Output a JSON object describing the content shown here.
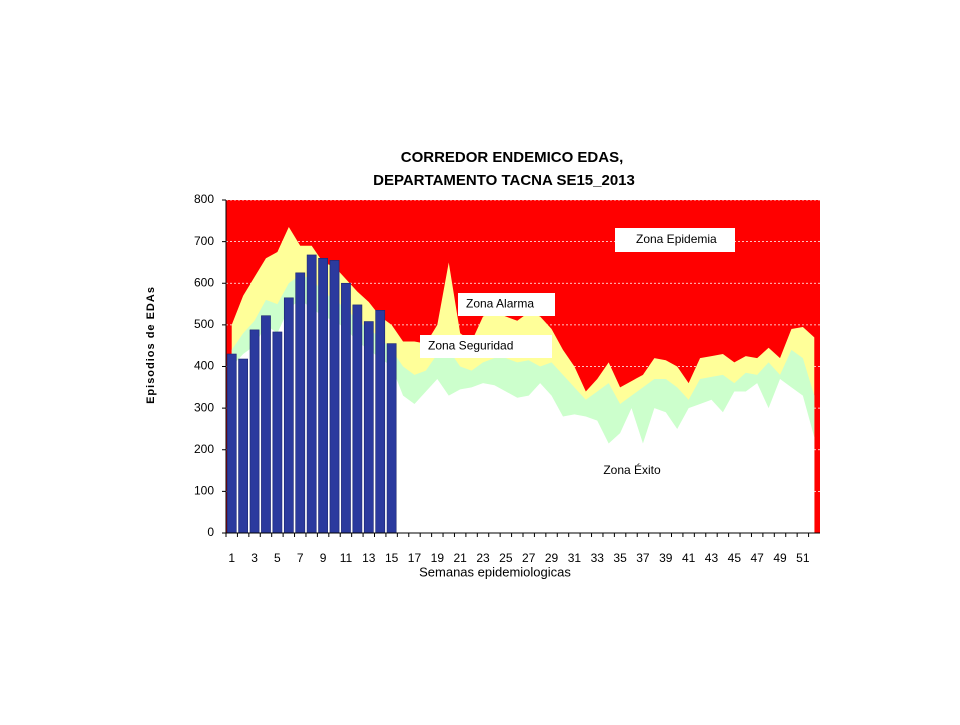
{
  "chart_data": {
    "type": "area",
    "title": "CORREDOR ENDEMICO EDAS,",
    "subtitle": "DEPARTAMENTO TACNA SE15_2013",
    "y_label": "Episodios de EDAs",
    "x_label": "Semanas epidemiologicas",
    "annotations": [
      "Zona Epidemia"
    ],
    "plot_color": "#ff0000",
    "categories": [
      1,
      null,
      3,
      null,
      5,
      null,
      7,
      null,
      9,
      null,
      11,
      null,
      13,
      null,
      15,
      null,
      17,
      null,
      19,
      null,
      21,
      null,
      23,
      null,
      25,
      null,
      27,
      null,
      29,
      null,
      31,
      null,
      33,
      null,
      35,
      null,
      37,
      null,
      39,
      null,
      41,
      null,
      43,
      null,
      45,
      null,
      47,
      null,
      49,
      null,
      51,
      null
    ],
    "ylim": [
      0,
      800
    ],
    "yticks": [
      0,
      100,
      200,
      300,
      400,
      500,
      600,
      700,
      800
    ],
    "grid": true,
    "series": [
      {
        "name": "Zona Alarma",
        "type": "area",
        "color": "#ffff99",
        "values": [
          500,
          570,
          615,
          660,
          675,
          735,
          690,
          690,
          650,
          640,
          610,
          580,
          555,
          520,
          500,
          460,
          460,
          455,
          500,
          650,
          480,
          460,
          520,
          530,
          520,
          510,
          530,
          520,
          490,
          440,
          400,
          340,
          370,
          410,
          350,
          365,
          380,
          420,
          415,
          400,
          360,
          420,
          425,
          430,
          410,
          425,
          420,
          445,
          420,
          490,
          495,
          470
        ]
      },
      {
        "name": "Zona Seguridad",
        "type": "area",
        "color": "#ccffcc",
        "values": [
          440,
          480,
          510,
          560,
          550,
          600,
          620,
          610,
          580,
          560,
          540,
          510,
          490,
          470,
          440,
          400,
          380,
          390,
          430,
          440,
          400,
          390,
          410,
          420,
          420,
          410,
          415,
          400,
          410,
          380,
          350,
          320,
          340,
          360,
          310,
          330,
          350,
          370,
          370,
          350,
          320,
          370,
          375,
          380,
          360,
          385,
          380,
          410,
          380,
          440,
          420,
          330
        ]
      },
      {
        "name": "Zona Éxito",
        "type": "area",
        "color": "#ffffff",
        "values": [
          400,
          430,
          450,
          500,
          480,
          540,
          560,
          540,
          520,
          510,
          490,
          460,
          440,
          420,
          400,
          330,
          310,
          340,
          370,
          330,
          345,
          350,
          360,
          355,
          340,
          325,
          330,
          360,
          330,
          280,
          285,
          280,
          270,
          215,
          240,
          300,
          215,
          300,
          290,
          250,
          300,
          310,
          320,
          290,
          340,
          340,
          360,
          300,
          370,
          350,
          330,
          230
        ]
      },
      {
        "type": "bar",
        "color": "#2b3a9e",
        "values": [
          430,
          418,
          488,
          522,
          483,
          565,
          625,
          668,
          660,
          655,
          600,
          548,
          508,
          535,
          455,
          null,
          null,
          null,
          null,
          null,
          null,
          null,
          null,
          null,
          null,
          null,
          null,
          null,
          null,
          null,
          null,
          null,
          null,
          null,
          null,
          null,
          null,
          null,
          null,
          null,
          null,
          null,
          null,
          null,
          null,
          null,
          null,
          null,
          null,
          null,
          null,
          null
        ]
      }
    ]
  }
}
